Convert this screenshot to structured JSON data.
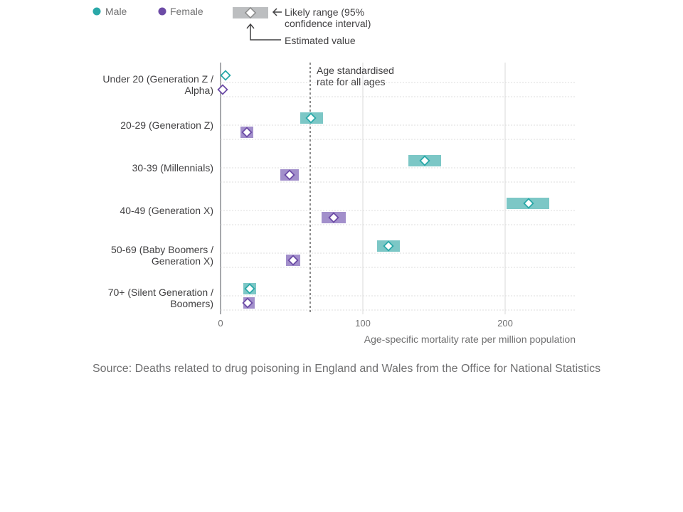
{
  "legend": {
    "male_label": "Male",
    "female_label": "Female",
    "range_label_line1": "Likely range (95%",
    "range_label_line2": "confidence interval)",
    "estimate_label": "Estimated value"
  },
  "colors": {
    "male": "#2aa8a8",
    "male_bar": "#7cc7c6",
    "female": "#6c4ba6",
    "female_bar": "#a28fcb",
    "legend_bar": "#bcbec0",
    "axis": "#bcbec0",
    "grid": "#d9d9d9",
    "text": "#414042",
    "muted_text": "#707071"
  },
  "reference": {
    "label_line1": "Age standardised",
    "label_line2": "rate for all ages",
    "value": 63
  },
  "chart_data": {
    "type": "dot-range",
    "xlabel": "Age-specific mortality rate per million population",
    "xlim": [
      0,
      248
    ],
    "xticks": [
      0,
      100,
      200
    ],
    "categories": [
      [
        "Under 20 (Generation Z /",
        "Alpha)"
      ],
      [
        "20-29 (Generation Z)"
      ],
      [
        "30-39 (Millennials)"
      ],
      [
        "40-49 (Generation X)"
      ],
      [
        "50-69 (Baby Boomers /",
        "Generation X)"
      ],
      [
        "70+ (Silent Generation /",
        "Boomers)"
      ]
    ],
    "series": [
      {
        "name": "Male",
        "values": [
          3.5,
          63.5,
          143.5,
          216.5,
          118,
          20.5
        ],
        "lower": [
          3,
          56,
          132,
          201,
          110,
          16
        ],
        "upper": [
          4,
          72,
          155,
          231,
          126,
          25
        ]
      },
      {
        "name": "Female",
        "values": [
          1.5,
          18.5,
          48.5,
          79.5,
          51,
          19
        ],
        "lower": [
          1,
          14,
          42,
          71,
          46,
          16
        ],
        "upper": [
          2,
          23,
          55,
          88,
          56,
          24
        ]
      }
    ],
    "grid": true,
    "legend_position": "top-left"
  },
  "source": "Source: Deaths related to drug poisoning in England and Wales from the Office for National Statistics"
}
